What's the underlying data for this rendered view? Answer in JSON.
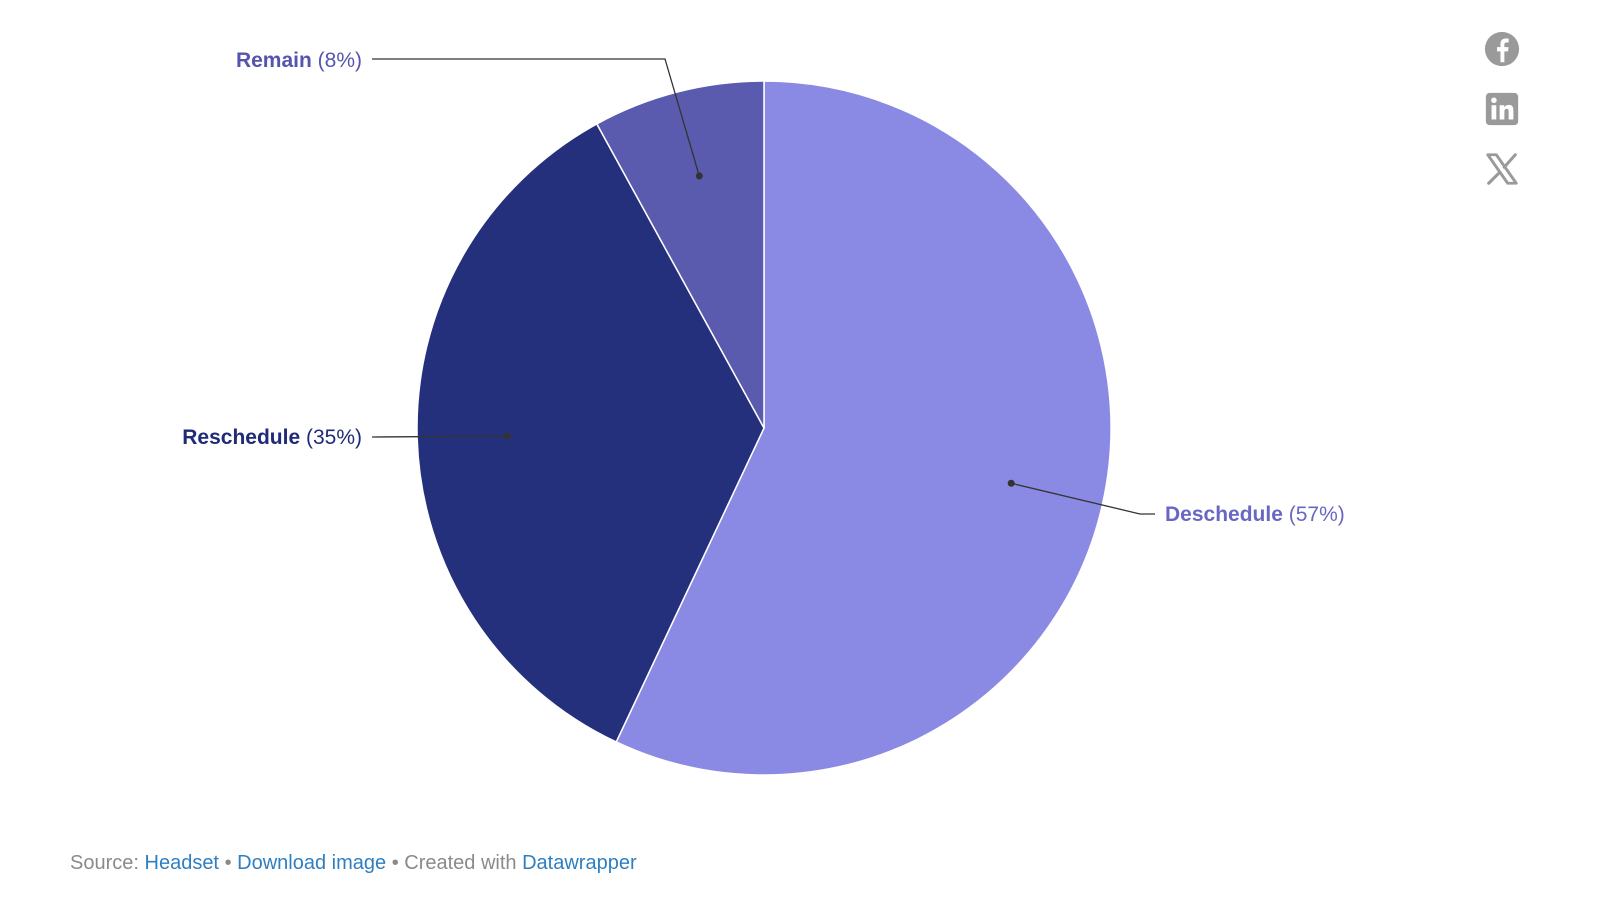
{
  "chart_data": {
    "type": "pie",
    "title": "",
    "slices": [
      {
        "label": "Deschedule",
        "value_text": "(57%)",
        "value": 57,
        "color": "#8a8ae4",
        "label_color": "#6a66c4"
      },
      {
        "label": "Reschedule",
        "value_text": "(35%)",
        "value": 35,
        "color": "#25307d",
        "label_color": "#1f2a78"
      },
      {
        "label": "Remain",
        "value_text": "(8%)",
        "value": 8,
        "color": "#5a5aae",
        "label_color": "#5555ad"
      }
    ],
    "start_angle_deg": 0,
    "direction": "clockwise",
    "legend": "none",
    "labels": "outside-with-leader-lines"
  },
  "share": {
    "facebook_icon": "facebook-icon",
    "linkedin_icon": "linkedin-icon",
    "x_icon": "x-icon",
    "icon_color": "#9a9a9a"
  },
  "footer": {
    "source_prefix": "Source:",
    "source_link": "Headset",
    "separator": "•",
    "download_link": "Download image",
    "created_with": "Created with",
    "datawrapper_link": "Datawrapper"
  }
}
